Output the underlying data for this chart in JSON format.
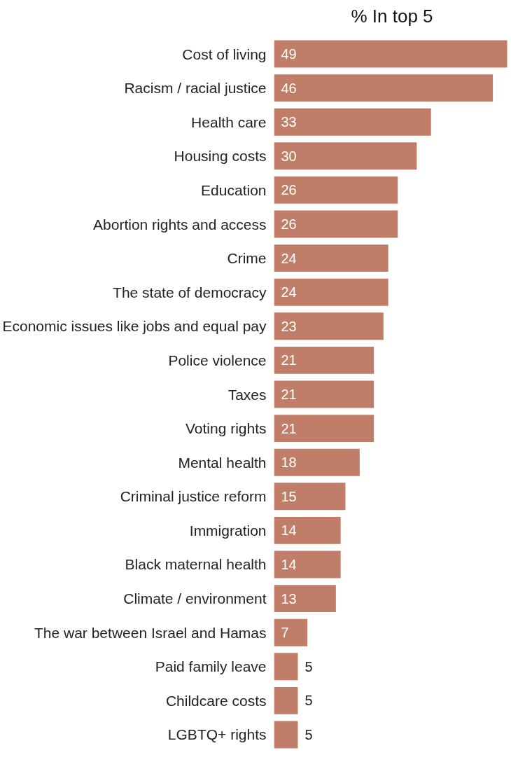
{
  "chart_data": {
    "type": "bar",
    "orientation": "horizontal",
    "title": "% In top 5",
    "categories": [
      "Cost of living",
      "Racism / racial justice",
      "Health care",
      "Housing costs",
      "Education",
      "Abortion rights and access",
      "Crime",
      "The state of democracy",
      "Economic issues like jobs and equal pay",
      "Police violence",
      "Taxes",
      "Voting rights",
      "Mental health",
      "Criminal justice reform",
      "Immigration",
      "Black maternal health",
      "Climate / environment",
      "The war between Israel and Hamas",
      "Paid family leave",
      "Childcare costs",
      "LGBTQ+ rights"
    ],
    "values": [
      49,
      46,
      33,
      30,
      26,
      26,
      24,
      24,
      23,
      21,
      21,
      21,
      18,
      15,
      14,
      14,
      13,
      7,
      5,
      5,
      5
    ],
    "color": "#c07d68",
    "data_labels": true,
    "grid": false
  }
}
